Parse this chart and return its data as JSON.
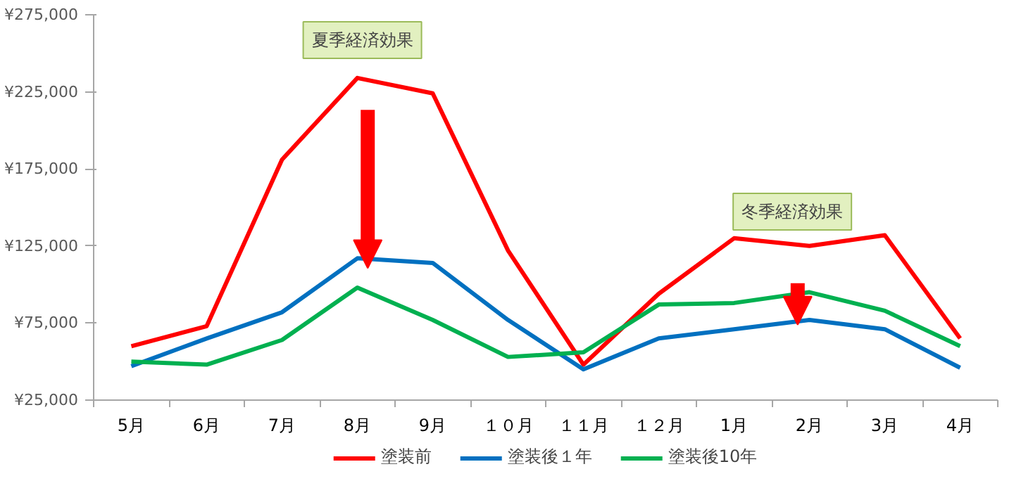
{
  "chart_data": {
    "type": "line",
    "categories": [
      "5月",
      "6月",
      "7月",
      "8月",
      "9月",
      "１０月",
      "１１月",
      "１２月",
      "1月",
      "2月",
      "3月",
      "4月"
    ],
    "series": [
      {
        "name": "塗装前",
        "color": "#ff0000",
        "values": [
          60000,
          73000,
          181000,
          234000,
          224000,
          122000,
          48000,
          94000,
          130000,
          125000,
          132000,
          65000
        ]
      },
      {
        "name": "塗装後１年",
        "color": "#0070c0",
        "values": [
          47000,
          65000,
          82000,
          117000,
          114000,
          77000,
          45000,
          65000,
          71000,
          77000,
          71000,
          46000
        ]
      },
      {
        "name": "塗装後10年",
        "color": "#00b050",
        "values": [
          50000,
          48000,
          64000,
          98000,
          77000,
          53000,
          56000,
          87000,
          88000,
          95000,
          83000,
          60000
        ]
      }
    ],
    "ylim": [
      25000,
      275000
    ],
    "yticks": [
      {
        "value": 25000,
        "label": "¥25,000"
      },
      {
        "value": 75000,
        "label": "¥75,000"
      },
      {
        "value": 125000,
        "label": "¥125,000"
      },
      {
        "value": 175000,
        "label": "¥175,000"
      },
      {
        "value": 225000,
        "label": "¥225,000"
      },
      {
        "value": 275000,
        "label": "¥275,000"
      }
    ],
    "annotations": [
      "夏季経済効果",
      "冬季経済効果"
    ],
    "legend": "bottom",
    "grid": false,
    "line_style": "solid",
    "marker": "none"
  }
}
